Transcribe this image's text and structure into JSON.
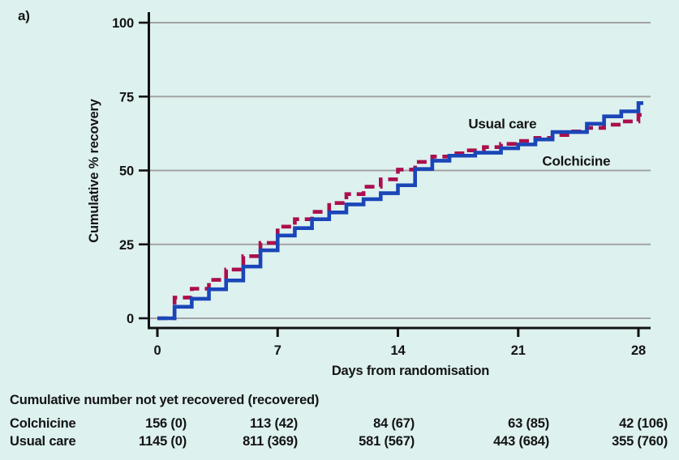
{
  "figure": {
    "panel_label": "a)",
    "background_color": "#ddf1ef",
    "grid_color": "#a3a3a3",
    "axis_color": "#111111",
    "text_color": "#141414"
  },
  "chart_data": {
    "type": "line",
    "subtype": "step-after",
    "title": "",
    "xlabel": "Days from randomisation",
    "ylabel": "Cumulative % recovery",
    "xlim": [
      0,
      28
    ],
    "ylim": [
      0,
      100
    ],
    "xticks": [
      0,
      7,
      14,
      21,
      28
    ],
    "yticks": [
      0,
      25,
      50,
      75,
      100
    ],
    "grid": "horizontal",
    "legend_position": "labels-inside-plot",
    "series": [
      {
        "name": "Usual care",
        "color": "#ab0e4d",
        "style": "dashed",
        "label_anchor": {
          "x": 18.1,
          "y": 64.2
        },
        "points": [
          [
            0,
            0
          ],
          [
            1,
            7
          ],
          [
            2,
            10
          ],
          [
            3,
            13
          ],
          [
            4,
            16.5
          ],
          [
            5,
            21
          ],
          [
            6,
            25.5
          ],
          [
            7,
            31
          ],
          [
            8,
            33.5
          ],
          [
            9,
            36
          ],
          [
            10,
            39
          ],
          [
            11,
            42
          ],
          [
            12,
            44.5
          ],
          [
            13,
            47
          ],
          [
            14,
            50.3
          ],
          [
            15,
            52.9
          ],
          [
            16,
            54.7
          ],
          [
            17,
            55.8
          ],
          [
            18,
            56.8
          ],
          [
            19,
            57.9
          ],
          [
            20,
            59
          ],
          [
            21,
            60
          ],
          [
            22,
            61
          ],
          [
            23,
            62
          ],
          [
            24,
            63.2
          ],
          [
            25,
            64.4
          ],
          [
            26,
            65.5
          ],
          [
            27,
            66.6
          ],
          [
            28,
            68.8
          ]
        ]
      },
      {
        "name": "Colchicine",
        "color": "#1a46b8",
        "style": "solid",
        "label_anchor": {
          "x": 22.4,
          "y": 51.6
        },
        "points": [
          [
            0,
            0
          ],
          [
            1,
            3.9
          ],
          [
            2,
            6.6
          ],
          [
            3,
            9.8
          ],
          [
            4,
            12.8
          ],
          [
            5,
            17.5
          ],
          [
            6,
            23
          ],
          [
            7,
            28
          ],
          [
            8,
            30.5
          ],
          [
            9,
            33.5
          ],
          [
            10,
            35.8
          ],
          [
            11,
            38.5
          ],
          [
            12,
            40.3
          ],
          [
            13,
            42.3
          ],
          [
            14,
            45
          ],
          [
            15,
            50.5
          ],
          [
            16,
            53.3
          ],
          [
            17,
            55
          ],
          [
            18.5,
            56
          ],
          [
            20,
            57.5
          ],
          [
            21,
            58.8
          ],
          [
            22,
            60.5
          ],
          [
            23,
            63
          ],
          [
            25,
            65.8
          ],
          [
            26,
            68.3
          ],
          [
            27,
            70
          ],
          [
            28,
            72.8
          ]
        ]
      }
    ]
  },
  "table": {
    "title": "Cumulative number not yet recovered (recovered)",
    "rows": [
      {
        "label": "Colchicine",
        "values": [
          "156 (0)",
          "113 (42)",
          "84 (67)",
          "63 (85)",
          "42 (106)"
        ]
      },
      {
        "label": "Usual care",
        "values": [
          "1145 (0)",
          "811 (369)",
          "581 (567)",
          "443 (684)",
          "355 (760)"
        ]
      }
    ]
  }
}
